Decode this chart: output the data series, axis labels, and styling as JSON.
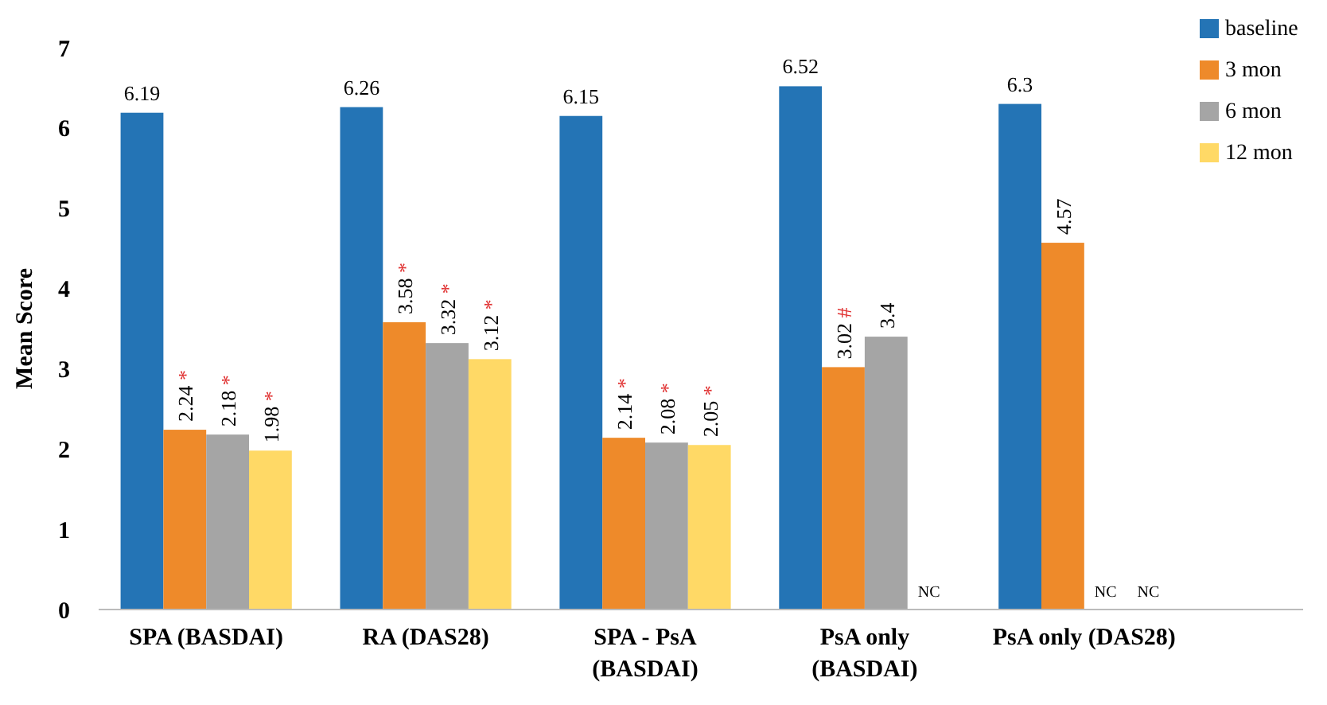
{
  "chart_data": {
    "type": "bar",
    "ylabel": "Mean Score",
    "categories": [
      "SPA (BASDAI)",
      "RA (DAS28)",
      "SPA - PsA (BASDAI)",
      "PsA only (BASDAI)",
      "PsA only (DAS28)"
    ],
    "series": [
      {
        "name": "baseline",
        "color": "#2474b5",
        "values": [
          6.19,
          6.26,
          6.15,
          6.52,
          6.3
        ],
        "value_labels": [
          "6.19",
          "6.26",
          "6.15",
          "6.52",
          "6.3"
        ]
      },
      {
        "name": "3 mon",
        "color": "#ee8a2a",
        "values": [
          2.24,
          3.58,
          2.14,
          3.02,
          4.57
        ],
        "value_labels": [
          "2.24 *",
          "3.58 *",
          "2.14 *",
          "3.02 #",
          "4.57"
        ]
      },
      {
        "name": "6 mon",
        "color": "#a5a5a5",
        "values": [
          2.18,
          3.32,
          2.08,
          3.4,
          null
        ],
        "value_labels": [
          "2.18 *",
          "3.32 *",
          "2.08 *",
          "3.4",
          "NC"
        ]
      },
      {
        "name": "12 mon",
        "color": "#ffd966",
        "values": [
          1.98,
          3.12,
          2.05,
          null,
          null
        ],
        "value_labels": [
          "1.98 *",
          "3.12 *",
          "2.05 *",
          "NC",
          "NC"
        ]
      }
    ],
    "ylim": [
      0,
      7
    ],
    "yticks": [
      0,
      1,
      2,
      3,
      4,
      5,
      6,
      7
    ],
    "grid": false,
    "legend": "top right"
  }
}
